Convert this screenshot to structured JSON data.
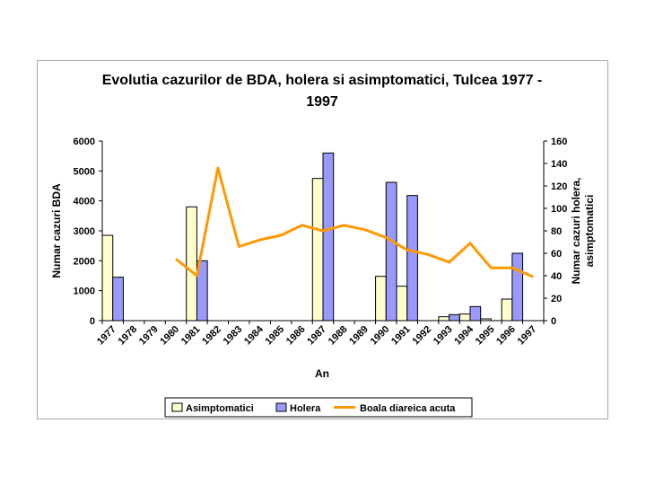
{
  "chart_data": {
    "type": "bar",
    "title_line1": "Evolutia cazurilor de BDA, holera si asimptomatici, Tulcea 1977 -",
    "title_line2": "1997",
    "xlabel": "An",
    "ylabel": "Numar cazuri BDA",
    "y2label_line1": "Numar cazuri holera,",
    "y2label_line2": "asimptomatici",
    "ylim": [
      0,
      6000
    ],
    "y_ticks": [
      "0",
      "1000",
      "2000",
      "3000",
      "4000",
      "5000",
      "6000"
    ],
    "y2lim": [
      0,
      160
    ],
    "y2_ticks": [
      "0",
      "20",
      "40",
      "60",
      "80",
      "100",
      "120",
      "140",
      "160"
    ],
    "categories": [
      "1977",
      "1978",
      "1979",
      "1980",
      "1981",
      "1982",
      "1983",
      "1984",
      "1985",
      "1986",
      "1987",
      "1988",
      "1989",
      "1990",
      "1991",
      "1992",
      "1993",
      "1994",
      "1995",
      "1996",
      "1997"
    ],
    "series": [
      {
        "name": "Asimptomatici",
        "type": "bar",
        "axis": "left",
        "color": "#ffffcc",
        "values": [
          2850,
          null,
          null,
          null,
          3800,
          null,
          null,
          null,
          null,
          null,
          4750,
          null,
          null,
          1480,
          1150,
          null,
          130,
          220,
          60,
          720,
          null
        ]
      },
      {
        "name": "Holera",
        "type": "bar",
        "axis": "left",
        "color": "#9999ff",
        "values": [
          1450,
          null,
          null,
          null,
          2000,
          null,
          null,
          null,
          null,
          null,
          5600,
          null,
          null,
          4620,
          4180,
          null,
          200,
          470,
          null,
          2250,
          null
        ]
      },
      {
        "name": "Boala diareica acuta",
        "type": "line",
        "axis": "right",
        "color": "#ff9900",
        "values": [
          null,
          null,
          null,
          55,
          40,
          136,
          66,
          72,
          76,
          85,
          80,
          85,
          81,
          74,
          63,
          59,
          52,
          69,
          47,
          47,
          39
        ]
      }
    ],
    "legend_position": "bottom",
    "grid": false
  }
}
